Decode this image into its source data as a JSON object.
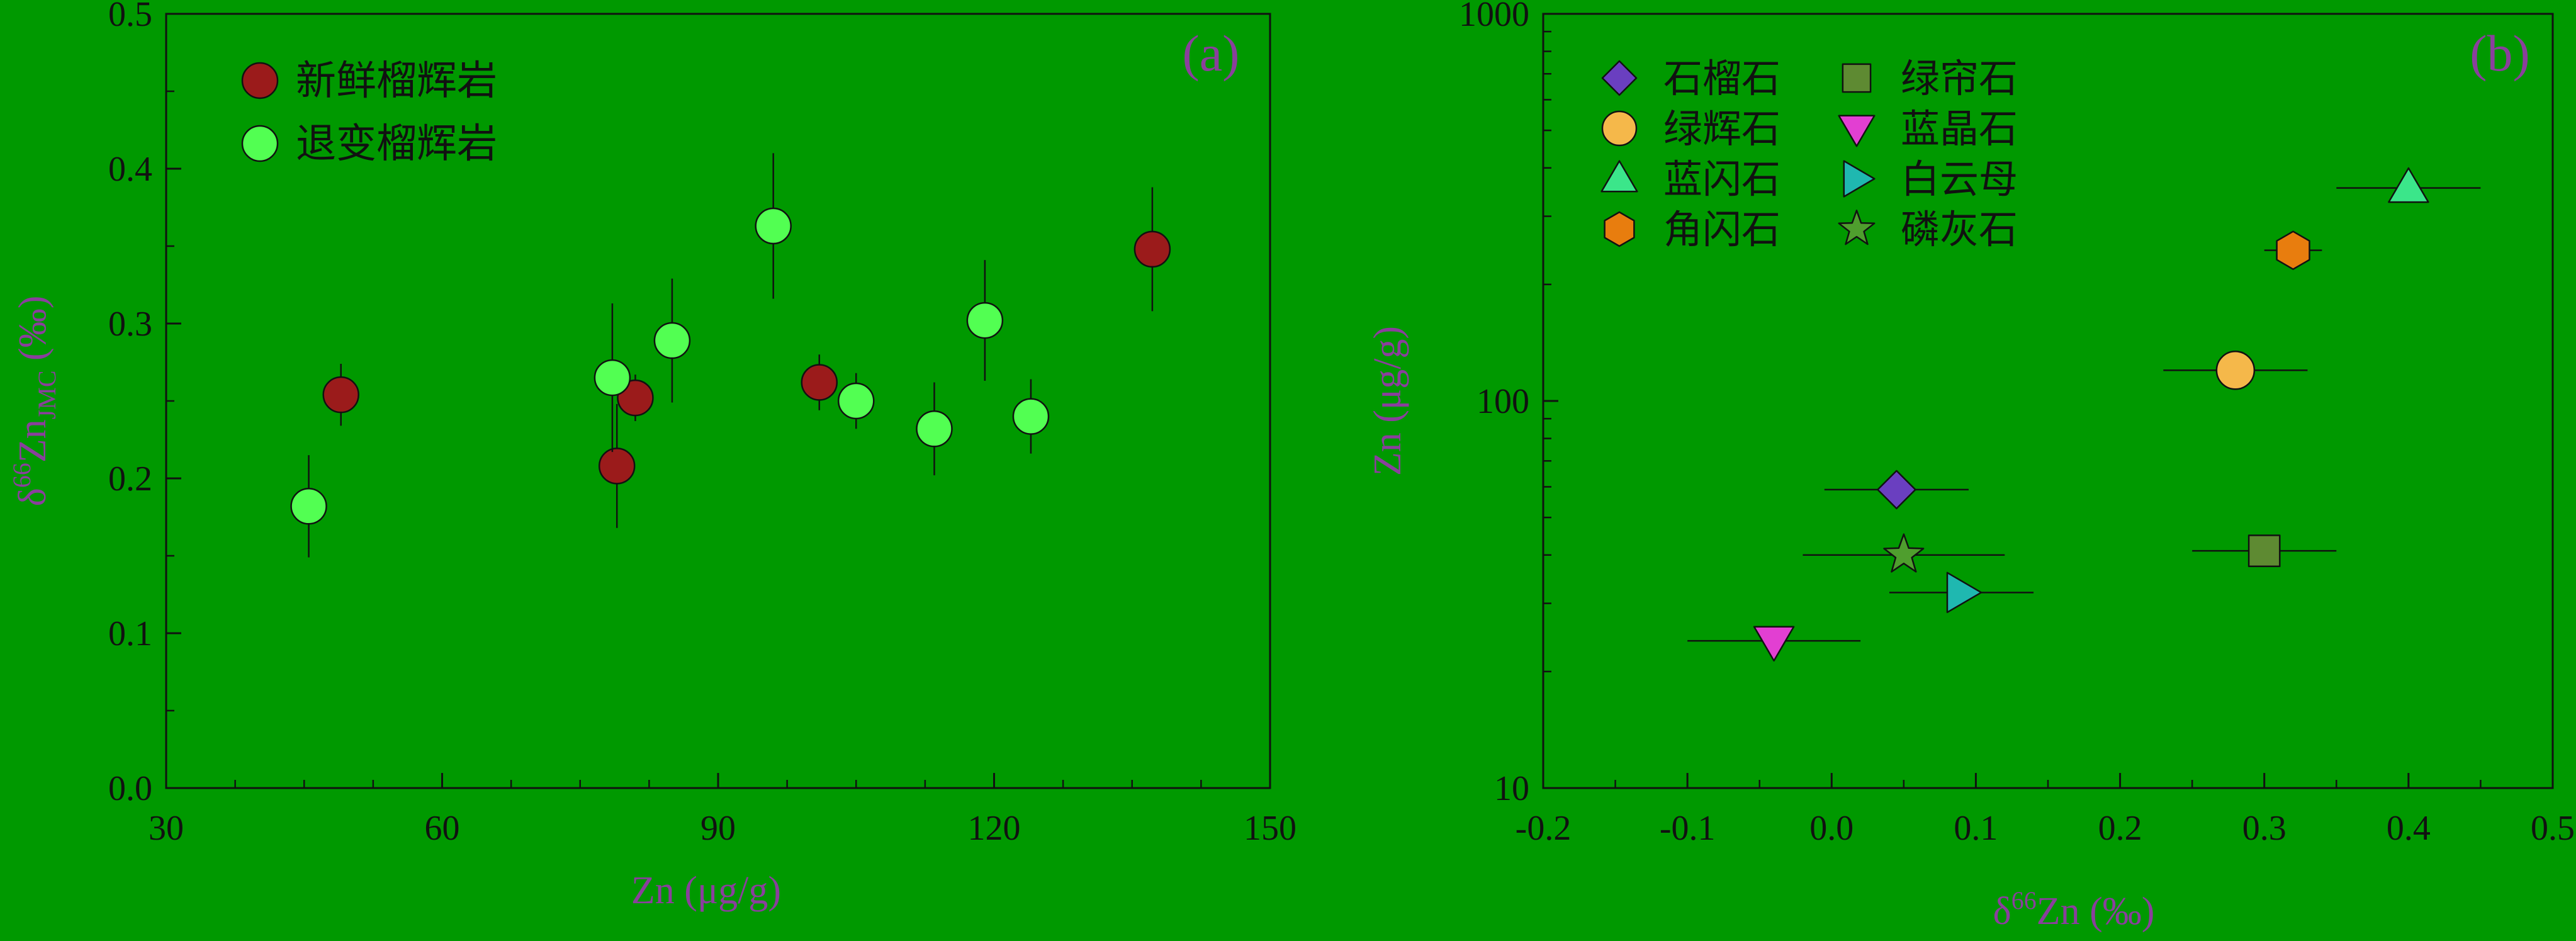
{
  "background_color": "#009900",
  "chart_data": [
    {
      "type": "scatter",
      "panel_label": "(a)",
      "xlabel": "Zn (μg/g)",
      "ylabel_parts": {
        "delta": "δ",
        "mass": "66",
        "element": "Zn",
        "subscript": "JMC",
        "unit": " (‰)"
      },
      "x_scale": "linear",
      "y_scale": "linear",
      "xlim": [
        30,
        150
      ],
      "ylim": [
        0.0,
        0.5
      ],
      "x_ticks": [
        30,
        60,
        90,
        120,
        150
      ],
      "x_tick_labels": [
        "30",
        "60",
        "90",
        "120",
        "150"
      ],
      "y_ticks": [
        0.0,
        0.1,
        0.2,
        0.3,
        0.4,
        0.5
      ],
      "y_tick_labels": [
        "0.0",
        "0.1",
        "0.2",
        "0.3",
        "0.4",
        "0.5"
      ],
      "grid": false,
      "legend_position": "top-left",
      "series": [
        {
          "name": "新鲜榴辉岩",
          "color": "#9b1b1b",
          "marker": "circle",
          "points": [
            {
              "x": 49,
              "y": 0.254,
              "yerr": 0.02
            },
            {
              "x": 79,
              "y": 0.208,
              "yerr": 0.04
            },
            {
              "x": 81,
              "y": 0.252,
              "yerr": 0.015
            },
            {
              "x": 101,
              "y": 0.262,
              "yerr": 0.018
            },
            {
              "x": 137.2,
              "y": 0.348,
              "yerr": 0.04
            }
          ]
        },
        {
          "name": "退变榴辉岩",
          "color": "#52ff52",
          "marker": "circle",
          "points": [
            {
              "x": 45.5,
              "y": 0.182,
              "yerr": 0.033
            },
            {
              "x": 78.5,
              "y": 0.265,
              "yerr": 0.048
            },
            {
              "x": 85,
              "y": 0.289,
              "yerr": 0.04
            },
            {
              "x": 96,
              "y": 0.363,
              "yerr": 0.047
            },
            {
              "x": 105,
              "y": 0.25,
              "yerr": 0.018
            },
            {
              "x": 113.5,
              "y": 0.232,
              "yerr": 0.03
            },
            {
              "x": 119,
              "y": 0.302,
              "yerr": 0.039
            },
            {
              "x": 124,
              "y": 0.24,
              "yerr": 0.024
            }
          ]
        }
      ]
    },
    {
      "type": "scatter",
      "panel_label": "(b)",
      "xlabel_parts": {
        "delta": "δ",
        "mass": "66",
        "element": "Zn",
        "unit": " (‰)"
      },
      "ylabel": "Zn (μg/g)",
      "x_scale": "linear",
      "y_scale": "log",
      "xlim": [
        -0.2,
        0.5
      ],
      "ylim": [
        10,
        1000
      ],
      "x_ticks": [
        -0.2,
        -0.1,
        0.0,
        0.1,
        0.2,
        0.3,
        0.4,
        0.5
      ],
      "x_tick_labels": [
        "-0.2",
        "-0.1",
        "0.0",
        "0.1",
        "0.2",
        "0.3",
        "0.4",
        "0.5"
      ],
      "y_ticks": [
        10,
        100,
        1000
      ],
      "y_tick_labels": [
        "10",
        "100",
        "1000"
      ],
      "grid": false,
      "legend_position": "top-left",
      "series": [
        {
          "name": "石榴石",
          "marker": "diamond",
          "color": "#6a3fc0",
          "points": [
            {
              "x": 0.045,
              "y": 59,
              "xerr": 0.05
            }
          ]
        },
        {
          "name": "绿辉石",
          "marker": "circle",
          "color": "#f5b84a",
          "points": [
            {
              "x": 0.28,
              "y": 120,
              "xerr": 0.05
            }
          ]
        },
        {
          "name": "蓝闪石",
          "marker": "triangle-up",
          "color": "#3be68a",
          "points": [
            {
              "x": 0.4,
              "y": 355,
              "xerr": 0.05
            }
          ]
        },
        {
          "name": "角闪石",
          "marker": "hexagon",
          "color": "#e87d0e",
          "points": [
            {
              "x": 0.32,
              "y": 245,
              "xerr": 0.02
            }
          ]
        },
        {
          "name": "绿帘石",
          "marker": "square",
          "color": "#5e8a32",
          "points": [
            {
              "x": 0.3,
              "y": 41,
              "xerr": 0.05
            }
          ]
        },
        {
          "name": "蓝晶石",
          "marker": "triangle-down",
          "color": "#e23fd2",
          "points": [
            {
              "x": -0.04,
              "y": 24,
              "xerr": 0.06
            }
          ]
        },
        {
          "name": "白云母",
          "marker": "triangle-right",
          "color": "#1fb8b0",
          "points": [
            {
              "x": 0.09,
              "y": 32,
              "xerr": 0.05
            }
          ]
        },
        {
          "name": "磷灰石",
          "marker": "star",
          "color": "#4f9e2e",
          "points": [
            {
              "x": 0.05,
              "y": 40,
              "xerr": 0.07
            }
          ]
        }
      ]
    }
  ]
}
